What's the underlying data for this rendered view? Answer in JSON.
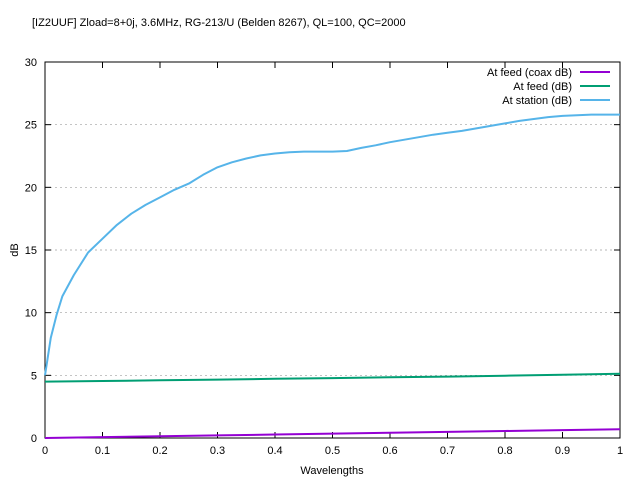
{
  "chart_data": {
    "type": "line",
    "title": "[IZ2UUF] Zload=8+0j, 3.6MHz, RG-213/U (Belden 8267), QL=100, QC=2000",
    "xlabel": "Wavelengths",
    "ylabel": "dB",
    "xlim": [
      0,
      1
    ],
    "ylim": [
      0,
      30
    ],
    "x_ticks": [
      "0",
      "0.1",
      "0.2",
      "0.3",
      "0.4",
      "0.5",
      "0.6",
      "0.7",
      "0.8",
      "0.9",
      "1"
    ],
    "y_ticks": [
      "0",
      "5",
      "10",
      "15",
      "20",
      "25",
      "30"
    ],
    "grid": "horizontal dotted",
    "legend_position": "top-right",
    "series": [
      {
        "name": "At feed (coax dB)",
        "color": "#9400d3",
        "x": [
          0,
          0.1,
          0.2,
          0.3,
          0.4,
          0.5,
          0.6,
          0.7,
          0.8,
          0.9,
          1.0
        ],
        "y": [
          0,
          0.07,
          0.14,
          0.21,
          0.28,
          0.35,
          0.42,
          0.49,
          0.56,
          0.63,
          0.7
        ]
      },
      {
        "name": "At feed (dB)",
        "color": "#009e73",
        "x": [
          0,
          0.1,
          0.2,
          0.3,
          0.4,
          0.5,
          0.6,
          0.7,
          0.8,
          0.9,
          1.0
        ],
        "y": [
          4.5,
          4.55,
          4.6,
          4.66,
          4.72,
          4.78,
          4.84,
          4.9,
          4.97,
          5.04,
          5.12
        ]
      },
      {
        "name": "At station (dB)",
        "color": "#56b4e9",
        "x": [
          0,
          0.01,
          0.02,
          0.03,
          0.05,
          0.075,
          0.1,
          0.125,
          0.15,
          0.175,
          0.2,
          0.225,
          0.25,
          0.275,
          0.3,
          0.325,
          0.35,
          0.375,
          0.4,
          0.425,
          0.45,
          0.475,
          0.5,
          0.525,
          0.55,
          0.575,
          0.6,
          0.625,
          0.65,
          0.675,
          0.7,
          0.725,
          0.75,
          0.775,
          0.8,
          0.825,
          0.85,
          0.875,
          0.9,
          0.925,
          0.95,
          0.975,
          1.0
        ],
        "y": [
          5.0,
          8.0,
          9.8,
          11.3,
          13.0,
          14.8,
          15.9,
          17.0,
          17.9,
          18.6,
          19.2,
          19.8,
          20.3,
          21.0,
          21.6,
          22.0,
          22.3,
          22.55,
          22.7,
          22.8,
          22.85,
          22.85,
          22.85,
          22.9,
          23.15,
          23.35,
          23.6,
          23.8,
          24.0,
          24.2,
          24.35,
          24.5,
          24.7,
          24.9,
          25.1,
          25.3,
          25.45,
          25.6,
          25.7,
          25.75,
          25.8,
          25.8,
          25.8
        ]
      }
    ]
  }
}
